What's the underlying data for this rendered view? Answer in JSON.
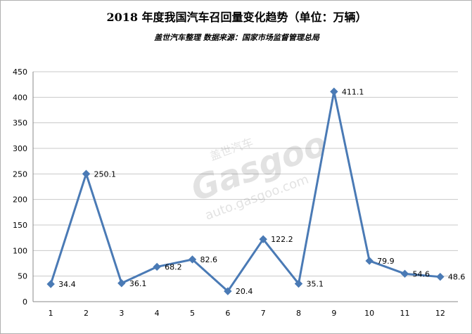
{
  "chart_data": {
    "type": "line",
    "title": "2018 年度我国汽车召回量变化趋势（单位：万辆）",
    "subtitle": "盖世汽车整理 数据来源：国家市场监督管理总局",
    "categories": [
      "1",
      "2",
      "3",
      "4",
      "5",
      "6",
      "7",
      "8",
      "9",
      "10",
      "11",
      "12"
    ],
    "series": [
      {
        "values": [
          34.4,
          250.1,
          36.1,
          68.2,
          82.6,
          20.4,
          122.2,
          35.1,
          411.1,
          79.9,
          54.6,
          48.6
        ]
      }
    ],
    "data_labels": [
      "34.4",
      "250.1",
      "36.1",
      "68.2",
      "82.6",
      "20.4",
      "122.2",
      "35.1",
      "411.1",
      "79.9",
      "54.6",
      "48.6"
    ],
    "ylim": [
      0,
      450
    ],
    "yticks": [
      "0",
      "50",
      "100",
      "150",
      "200",
      "250",
      "300",
      "350",
      "400",
      "450"
    ],
    "grid": true,
    "legend": "none",
    "colors": {
      "line": "#4a7ab5",
      "marker": "#4a7ab5",
      "grid": "#c8c8c8",
      "axis": "#888888"
    }
  },
  "watermark": {
    "cn": "盖世汽车",
    "brand": "Gasgoo",
    "url": "auto.gasgoo.com"
  }
}
